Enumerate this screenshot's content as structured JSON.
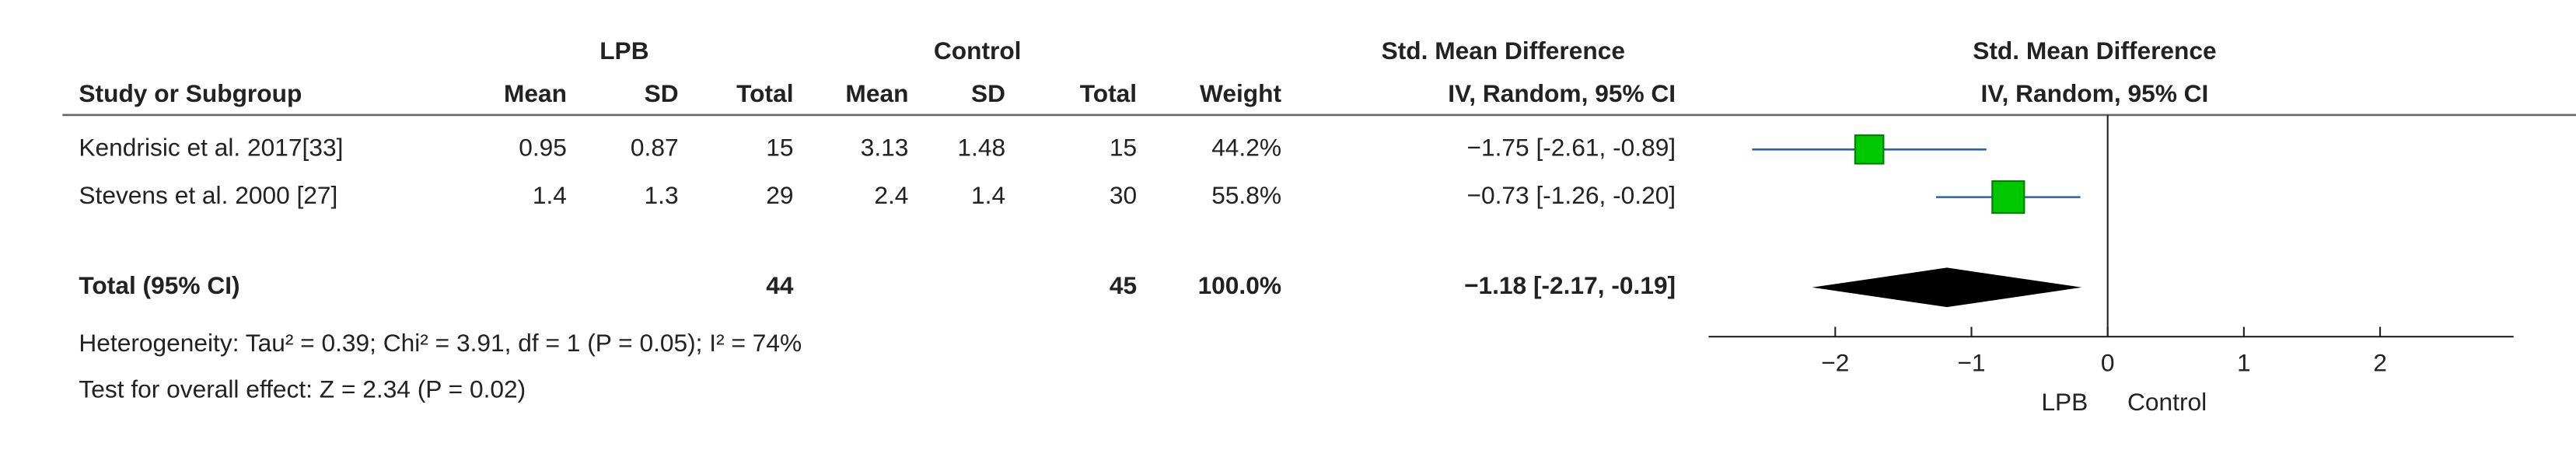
{
  "chart_data": {
    "type": "forest",
    "headers": {
      "group1": "LPB",
      "group2": "Control",
      "effect": "Std. Mean Difference",
      "method": "IV, Random, 95% CI",
      "study": "Study or Subgroup",
      "mean": "Mean",
      "sd": "SD",
      "total": "Total",
      "weight": "Weight"
    },
    "studies": [
      {
        "name": "Kendrisic et al. 2017[33]",
        "g1": [
          0.95,
          0.87,
          15
        ],
        "g2": [
          3.13,
          1.48,
          15
        ],
        "weight": 44.2,
        "weight_label": "44.2%",
        "smd": -1.75,
        "ci": [
          -2.61,
          -0.89
        ],
        "effect_label": "−1.75 [-2.61, -0.89]"
      },
      {
        "name": "Stevens et al. 2000 [27]",
        "g1": [
          1.4,
          1.3,
          29
        ],
        "g2": [
          2.4,
          1.4,
          30
        ],
        "weight": 55.8,
        "weight_label": "55.8%",
        "smd": -0.73,
        "ci": [
          -1.26,
          -0.2
        ],
        "effect_label": "−0.73 [-1.26, -0.20]"
      }
    ],
    "total": {
      "name": "Total (95% CI)",
      "g1_total": 44,
      "g2_total": 45,
      "weight_label": "100.0%",
      "smd": -1.18,
      "ci": [
        -2.17,
        -0.19
      ],
      "effect_label": "−1.18 [-2.17, -0.19]"
    },
    "heterogeneity": "Heterogeneity: Tau² = 0.39; Chi² = 3.91, df = 1 (P = 0.05); I² = 74%",
    "overall_effect": "Test for overall effect: Z = 2.34 (P = 0.02)",
    "xlim": [
      -2.93,
      2.98
    ],
    "xticks": [
      {
        "value": -2,
        "label": "−2"
      },
      {
        "value": -1,
        "label": "−1"
      },
      0,
      1,
      2
    ],
    "favours": [
      "LPB",
      "Control"
    ],
    "marker_color": "#00c800",
    "diamond_color": "#000000"
  }
}
